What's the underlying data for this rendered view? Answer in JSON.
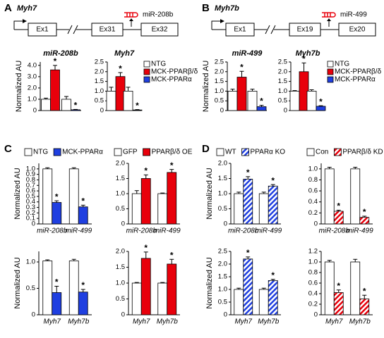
{
  "panel_labels": [
    "A",
    "B",
    "C",
    "D"
  ],
  "diagrams": [
    {
      "gene": "Myh7",
      "exons": [
        "Ex1",
        "Ex31",
        "Ex32"
      ],
      "mirna": "miR-208b"
    },
    {
      "gene": "Myh7b",
      "exons": [
        "Ex1",
        "Ex19",
        "Ex20"
      ],
      "mirna": "miR-499"
    }
  ],
  "chart_data": [
    {
      "type": "bar",
      "title": "miR-208b",
      "ylabel": "Normalized AU",
      "categories": [
        null,
        null
      ],
      "ylim": [
        0,
        4.3
      ],
      "yticks": [
        0,
        {
          "value": 1,
          "label": "1.0"
        },
        {
          "value": 2,
          "label": "2.0"
        },
        {
          "value": 3,
          "label": "3.0"
        },
        {
          "value": 4,
          "label": "4.0"
        }
      ],
      "series": [
        {
          "color": "#ffffff",
          "values": [
            1.0,
            1.0
          ],
          "errors": [
            0.1,
            0.25
          ],
          "annotations": [
            null,
            null
          ]
        },
        {
          "color": "#e8000b",
          "values": [
            3.6,
            null
          ],
          "errors": [
            0.4,
            null
          ],
          "annotations": [
            "*",
            null
          ]
        },
        {
          "color": "#1f3fe0",
          "values": [
            null,
            0.07
          ],
          "errors": [
            null,
            0.03
          ],
          "annotations": [
            null,
            "*"
          ]
        }
      ]
    },
    {
      "type": "bar",
      "title": "Myh7",
      "categories": [
        null,
        null
      ],
      "legend": "right",
      "ylim": [
        0,
        2.5
      ],
      "yticks": [
        0,
        0.5,
        {
          "value": 1,
          "label": "1.0"
        },
        1.5,
        {
          "value": 2,
          "label": "2.0"
        },
        2.5
      ],
      "series": [
        {
          "name": "NTG",
          "color": "#ffffff",
          "values": [
            1.0,
            1.0
          ],
          "errors": [
            0.2,
            0.2
          ],
          "annotations": [
            null,
            null
          ]
        },
        {
          "name": "MCK-PPARβ/δ",
          "color": "#e8000b",
          "values": [
            1.75,
            null
          ],
          "errors": [
            0.2,
            null
          ],
          "annotations": [
            "*",
            null
          ]
        },
        {
          "name": "MCK-PPARα",
          "color": "#1f3fe0",
          "values": [
            null,
            0.03
          ],
          "errors": [
            null,
            0.02
          ],
          "annotations": [
            null,
            "*"
          ]
        }
      ]
    },
    {
      "type": "bar",
      "title": "miR-499",
      "ylabel": "Normalized AU",
      "categories": [
        null,
        null
      ],
      "ylim": [
        0,
        2.5
      ],
      "yticks": [
        0,
        0.5,
        {
          "value": 1,
          "label": "1.0"
        },
        1.5,
        {
          "value": 2,
          "label": "2.0"
        },
        2.5
      ],
      "series": [
        {
          "color": "#ffffff",
          "values": [
            1.0,
            1.0
          ],
          "errors": [
            0.1,
            0.1
          ],
          "annotations": [
            null,
            null
          ]
        },
        {
          "color": "#e8000b",
          "values": [
            1.72,
            null
          ],
          "errors": [
            0.3,
            null
          ],
          "annotations": [
            "*",
            null
          ]
        },
        {
          "color": "#1f3fe0",
          "values": [
            null,
            0.2
          ],
          "errors": [
            null,
            0.07
          ],
          "annotations": [
            null,
            "*"
          ]
        }
      ]
    },
    {
      "type": "bar",
      "title": "Myh7b",
      "categories": [
        null,
        null
      ],
      "legend": "right",
      "ylim": [
        0,
        2.5
      ],
      "yticks": [
        0,
        0.5,
        {
          "value": 1,
          "label": "1.0"
        },
        1.5,
        {
          "value": 2,
          "label": "2.0"
        },
        2.5
      ],
      "series": [
        {
          "name": "NTG",
          "color": "#ffffff",
          "values": [
            1.0,
            1.0
          ],
          "errors": [
            0.03,
            0.07
          ],
          "annotations": [
            null,
            null
          ]
        },
        {
          "name": "MCK-PPARβ/δ",
          "color": "#e8000b",
          "values": [
            2.0,
            null
          ],
          "errors": [
            0.45,
            null
          ],
          "annotations": [
            "*",
            null
          ]
        },
        {
          "name": "MCK-PPARα",
          "color": "#1f3fe0",
          "values": [
            null,
            0.22
          ],
          "errors": [
            null,
            0.03
          ],
          "annotations": [
            null,
            "*"
          ]
        }
      ]
    },
    {
      "type": "bar",
      "ylabel": "Normalized AU",
      "categories": [
        "miR-208b",
        "miR-499"
      ],
      "legend": "top",
      "ylim": [
        0,
        1.1
      ],
      "yticks": [
        0,
        0.1,
        0.2,
        0.3,
        0.4,
        0.5,
        0.6,
        0.7,
        0.8,
        0.9,
        {
          "value": 1,
          "label": "1.0"
        }
      ],
      "series": [
        {
          "name": "NTG",
          "color": "#ffffff",
          "values": [
            1.0,
            1.0
          ],
          "errors": [
            0.02,
            0.02
          ],
          "annotations": [
            null,
            null
          ]
        },
        {
          "name": "MCK-PPARα",
          "color": "#1f3fe0",
          "values": [
            0.39,
            0.31
          ],
          "errors": [
            0.03,
            0.03
          ],
          "annotations": [
            "*",
            "*"
          ]
        }
      ]
    },
    {
      "type": "bar",
      "categories": [
        "miR-208b",
        "miR-499"
      ],
      "legend": "top",
      "ylim": [
        0,
        2.0
      ],
      "yticks": [
        0,
        0.5,
        {
          "value": 1,
          "label": "1.0"
        },
        1.5,
        {
          "value": 2,
          "label": "2.0"
        }
      ],
      "series": [
        {
          "name": "GFP",
          "color": "#ffffff",
          "values": [
            1.0,
            1.0
          ],
          "errors": [
            0.1,
            0.02
          ],
          "annotations": [
            null,
            null
          ]
        },
        {
          "name": "PPARβ/δ OE",
          "color": "#e8000b",
          "values": [
            1.5,
            1.7
          ],
          "errors": [
            0.12,
            0.1
          ],
          "annotations": [
            "*",
            "*"
          ]
        }
      ]
    },
    {
      "type": "bar",
      "ylabel": "Normalized AU",
      "categories": [
        "Myh7",
        "Myh7b"
      ],
      "ylim": [
        0,
        1.2
      ],
      "yticks": [
        0,
        0.5,
        {
          "value": 1,
          "label": "1.0"
        }
      ],
      "series": [
        {
          "color": "#ffffff",
          "values": [
            1.02,
            1.02
          ],
          "errors": [
            0.02,
            0.03
          ],
          "annotations": [
            null,
            null
          ]
        },
        {
          "color": "#1f3fe0",
          "values": [
            0.42,
            0.43
          ],
          "errors": [
            0.12,
            0.05
          ],
          "annotations": [
            "*",
            "*"
          ]
        }
      ]
    },
    {
      "type": "bar",
      "categories": [
        "Myh7",
        "Myh7b"
      ],
      "ylim": [
        0,
        2.0
      ],
      "yticks": [
        0,
        0.5,
        {
          "value": 1,
          "label": "1.0"
        },
        1.5,
        {
          "value": 2,
          "label": "2.0"
        }
      ],
      "series": [
        {
          "color": "#ffffff",
          "values": [
            1.0,
            1.0
          ],
          "errors": [
            0.02,
            0.02
          ],
          "annotations": [
            null,
            null
          ]
        },
        {
          "color": "#e8000b",
          "values": [
            1.78,
            1.6
          ],
          "errors": [
            0.2,
            0.15
          ],
          "annotations": [
            "*",
            "*"
          ]
        }
      ]
    },
    {
      "type": "bar",
      "ylabel": "Normalized AU",
      "categories": [
        "miR-208b",
        "miR-499"
      ],
      "legend": "top",
      "ylim": [
        0,
        2.0
      ],
      "yticks": [
        0,
        0.5,
        {
          "value": 1,
          "label": "1.0"
        },
        1.5,
        {
          "value": 2,
          "label": "2.0"
        }
      ],
      "series": [
        {
          "name": "WT",
          "color": "#ffffff",
          "values": [
            1.0,
            1.0
          ],
          "errors": [
            0.05,
            0.05
          ],
          "annotations": [
            null,
            null
          ]
        },
        {
          "name": "PPARα KO",
          "color": "#1f3fe0",
          "pattern": "hatch",
          "values": [
            1.48,
            1.25
          ],
          "errors": [
            0.08,
            0.05
          ],
          "annotations": [
            "*",
            "*"
          ]
        }
      ]
    },
    {
      "type": "bar",
      "categories": [
        "miR-208b",
        "miR-499"
      ],
      "legend": "top",
      "ylim": [
        0,
        1.1
      ],
      "yticks": [
        0,
        0.2,
        0.4,
        0.6,
        0.8,
        {
          "value": 1,
          "label": "1.0"
        }
      ],
      "series": [
        {
          "name": "Con",
          "color": "#ffffff",
          "values": [
            1.0,
            1.0
          ],
          "errors": [
            0.03,
            0.03
          ],
          "annotations": [
            null,
            null
          ]
        },
        {
          "name": "PPARβ/δ KD",
          "color": "#e8000b",
          "pattern": "hatch",
          "values": [
            0.23,
            0.12
          ],
          "errors": [
            0.02,
            0.02
          ],
          "annotations": [
            "*",
            "*"
          ]
        }
      ]
    },
    {
      "type": "bar",
      "ylabel": "Normalized AU",
      "categories": [
        "Myh7",
        "Myh7b"
      ],
      "ylim": [
        0,
        2.5
      ],
      "yticks": [
        0,
        0.5,
        {
          "value": 1,
          "label": "1.0"
        },
        1.5,
        {
          "value": 2,
          "label": "2.0"
        },
        2.5
      ],
      "series": [
        {
          "color": "#ffffff",
          "values": [
            1.0,
            1.0
          ],
          "errors": [
            0.05,
            0.05
          ],
          "annotations": [
            null,
            null
          ]
        },
        {
          "color": "#1f3fe0",
          "pattern": "hatch",
          "values": [
            2.2,
            1.35
          ],
          "errors": [
            0.08,
            0.05
          ],
          "annotations": [
            "*",
            "*"
          ]
        }
      ]
    },
    {
      "type": "bar",
      "categories": [
        "Myh7",
        "Myh7b"
      ],
      "ylim": [
        0,
        1.2
      ],
      "yticks": [
        0,
        0.2,
        0.4,
        0.6,
        0.8,
        {
          "value": 1,
          "label": "1.0"
        },
        1.2
      ],
      "series": [
        {
          "color": "#ffffff",
          "values": [
            1.0,
            1.0
          ],
          "errors": [
            0.03,
            0.05
          ],
          "annotations": [
            null,
            null
          ]
        },
        {
          "color": "#e8000b",
          "pattern": "hatch",
          "values": [
            0.42,
            0.3
          ],
          "errors": [
            0.05,
            0.07
          ],
          "annotations": [
            "*",
            "*"
          ]
        }
      ]
    }
  ]
}
